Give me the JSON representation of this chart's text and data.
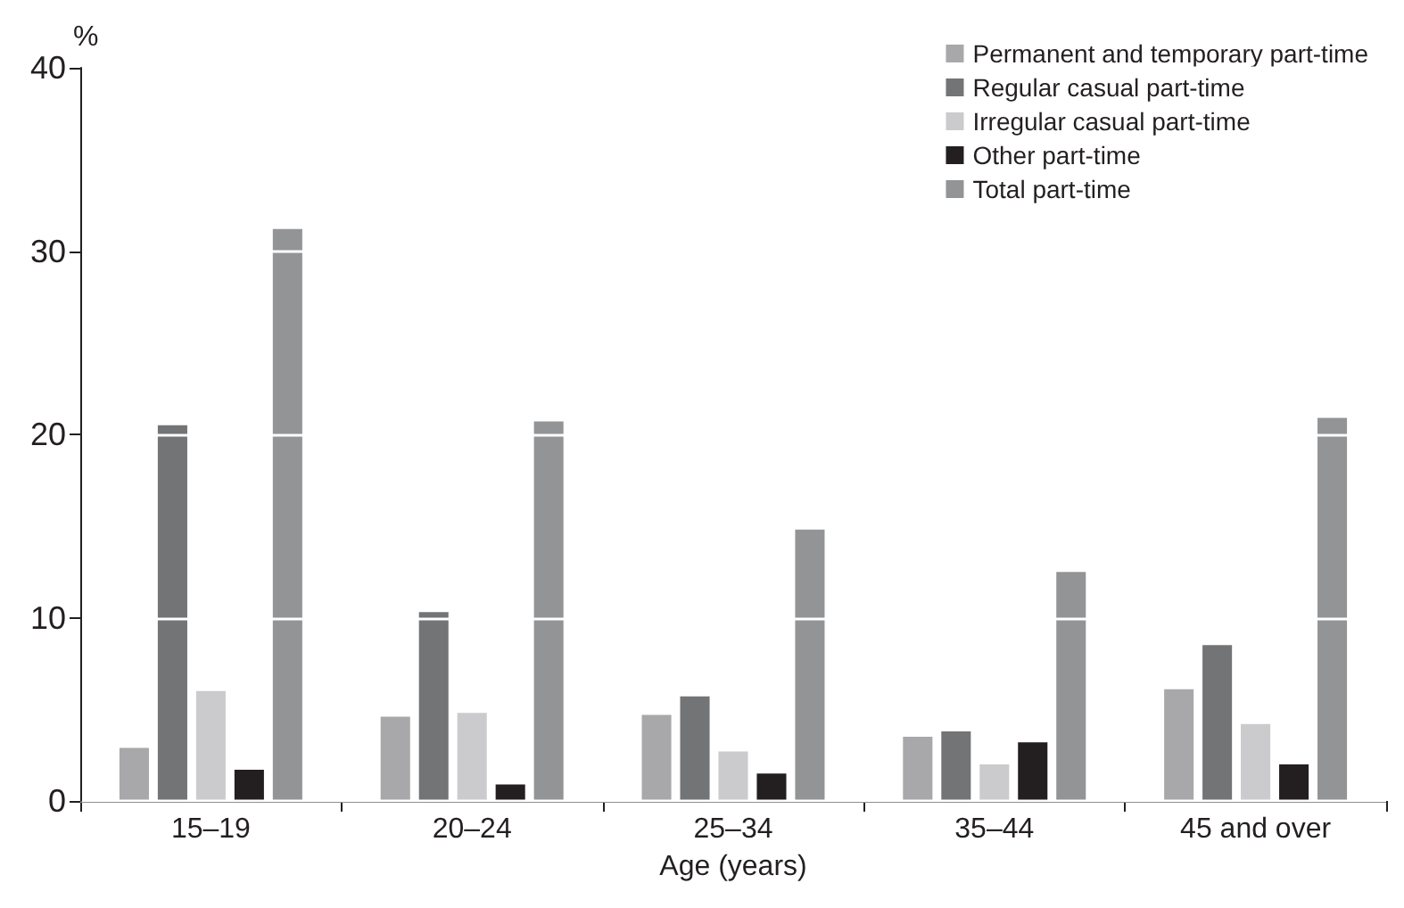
{
  "chart_data": {
    "type": "bar",
    "xlabel": "Age (years)",
    "ylabel": "%",
    "categories": [
      "15–19",
      "20–24",
      "25–34",
      "35–44",
      "45 and over"
    ],
    "series": [
      {
        "name": "Permanent and temporary part-time",
        "color": "#a8a8aa",
        "values": [
          2.9,
          4.6,
          4.7,
          3.5,
          6.1
        ]
      },
      {
        "name": "Regular casual part-time",
        "color": "#737476",
        "values": [
          20.5,
          10.3,
          5.7,
          3.8,
          8.5
        ]
      },
      {
        "name": "Irregular casual part-time",
        "color": "#cbcbcd",
        "values": [
          6.0,
          4.8,
          2.7,
          2.0,
          4.2
        ]
      },
      {
        "name": "Other part-time",
        "color": "#231f20",
        "values": [
          1.7,
          0.9,
          1.5,
          3.2,
          2.0
        ]
      },
      {
        "name": "Total part-time",
        "color": "#939496",
        "values": [
          31.2,
          20.7,
          14.8,
          12.5,
          20.9
        ]
      }
    ],
    "ylim": [
      0,
      40
    ],
    "yticks": [
      0,
      10,
      20,
      30,
      40
    ],
    "grid": true,
    "legend": "top right"
  }
}
